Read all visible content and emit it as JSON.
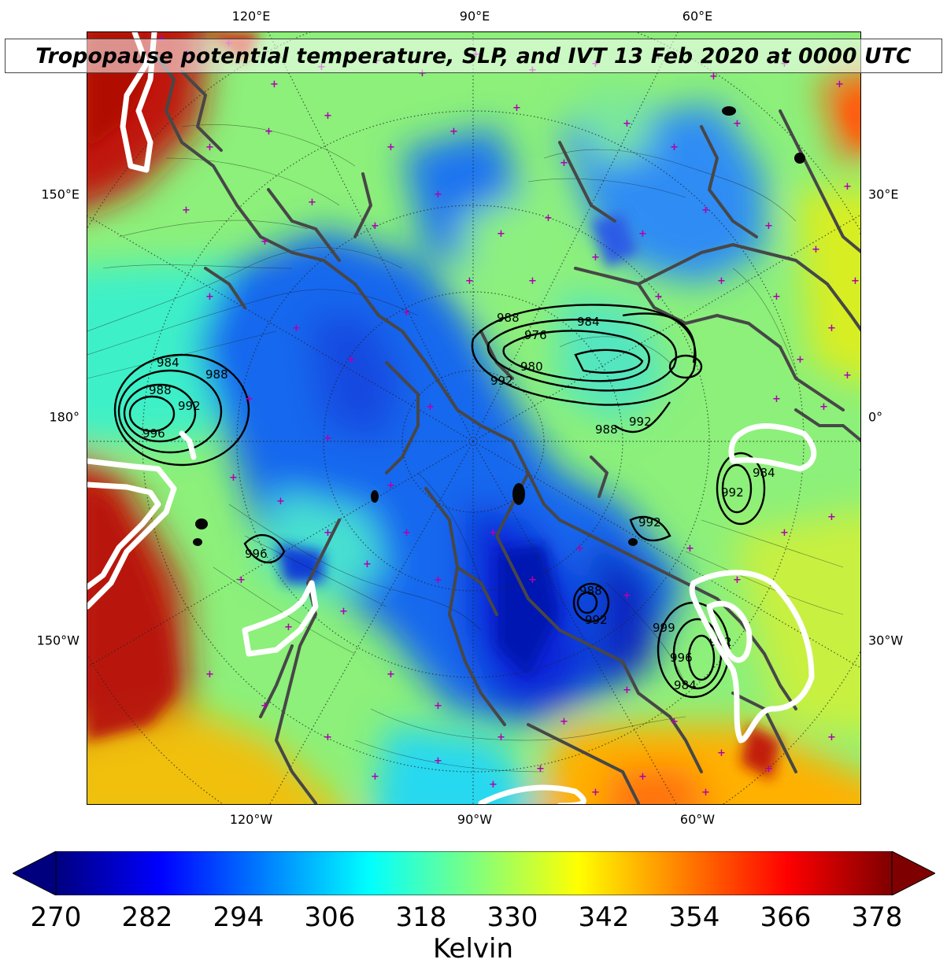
{
  "title": "Tropopause potential temperature, SLP, and IVT 13 Feb 2020 at 0000 UTC",
  "axis_labels": {
    "top": [
      "120°E",
      "90°E",
      "60°E"
    ],
    "bottom": [
      "120°W",
      "90°W",
      "60°W"
    ],
    "left": [
      "150°E",
      "180°",
      "150°W"
    ],
    "right": [
      "30°E",
      "0°",
      "30°W"
    ]
  },
  "colorbar": {
    "ticks": [
      "270",
      "282",
      "294",
      "306",
      "318",
      "330",
      "342",
      "354",
      "366",
      "378"
    ],
    "label": "Kelvin",
    "min": 270,
    "max": 378,
    "extend": "both",
    "colormap": [
      "#00007f",
      "#0000ff",
      "#007fff",
      "#00ffff",
      "#7fff7f",
      "#ffff00",
      "#ff7f00",
      "#ff0000",
      "#7f0000"
    ]
  },
  "slp_contour_labels": [
    "984",
    "988",
    "976",
    "980",
    "992",
    "988",
    "992",
    "984",
    "988",
    "992",
    "996",
    "988",
    "984",
    "992",
    "992",
    "996",
    "988",
    "992",
    "996",
    "984",
    "992",
    "999"
  ],
  "colors": {
    "coastline": "#474747",
    "slp_contour": "#000000",
    "ivt_contour": "#ffffff",
    "marker": "#b000b0"
  }
}
